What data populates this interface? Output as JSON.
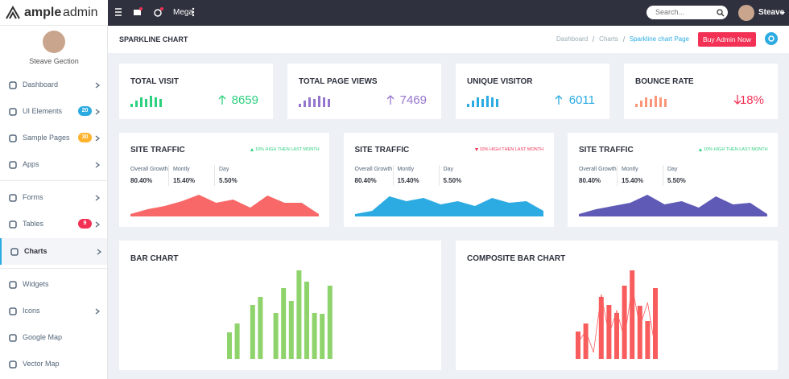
{
  "brand": {
    "bold": "ample",
    "light": "admin"
  },
  "topbar": {
    "mega": "Mega",
    "search_placeholder": "Search...",
    "user": "Steave"
  },
  "sidebar": {
    "user": "Steave Gection",
    "menu": [
      {
        "label": "Dashboard"
      },
      {
        "label": "UI Elements",
        "badge": "20",
        "badge_color": "#2cabe3"
      },
      {
        "label": "Sample Pages",
        "badge": "30",
        "badge_color": "#ffb22b"
      },
      {
        "label": "Apps"
      },
      {
        "label": "Forms"
      },
      {
        "label": "Tables",
        "badge": "9",
        "badge_color": "#f33155"
      },
      {
        "label": "Charts",
        "active": true
      },
      {
        "label": "Widgets"
      },
      {
        "label": "Icons"
      },
      {
        "label": "Google Map"
      },
      {
        "label": "Vector Map"
      }
    ]
  },
  "page": {
    "title": "SPARKLINE CHART",
    "breadcrumb": [
      "Dashboard",
      "Charts",
      "Sparkline chart Page"
    ],
    "button": "Buy Admin Now"
  },
  "stats": [
    {
      "title": "TOTAL VISIT",
      "value": "8659",
      "trend": "up",
      "color": "#2cd07e",
      "bars": [
        4,
        8,
        12,
        10,
        14,
        12,
        10
      ]
    },
    {
      "title": "TOTAL PAGE VIEWS",
      "value": "7469",
      "trend": "up",
      "color": "#9675ce",
      "bars": [
        4,
        8,
        12,
        10,
        14,
        12,
        10
      ]
    },
    {
      "title": "UNIQUE VISITOR",
      "value": "6011",
      "trend": "up",
      "color": "#2cabe3",
      "bars": [
        4,
        8,
        12,
        10,
        14,
        12,
        10
      ]
    },
    {
      "title": "BOUNCE RATE",
      "value": "18%",
      "trend": "down",
      "color": "#f33155",
      "bar_color": "#fb9678",
      "bars": [
        4,
        8,
        12,
        10,
        14,
        12,
        10
      ]
    }
  ],
  "traffic": [
    {
      "title": "SITE TRAFFIC",
      "note": "10% HIGH THEN LAST MONTH",
      "trend": "up",
      "color": "#f96868",
      "labels": [
        "Overall Growth",
        "Montly",
        "Day"
      ],
      "numbers": [
        "80.40%",
        "15.40%",
        "5.50%"
      ],
      "area": [
        2,
        8,
        12,
        18,
        26,
        16,
        20,
        10,
        25,
        16,
        16,
        2
      ]
    },
    {
      "title": "SITE TRAFFIC",
      "note": "10% HIGH THEN LAST MONTH",
      "trend": "down",
      "color": "#2cabe3",
      "labels": [
        "Overall Growth",
        "Montly",
        "Day"
      ],
      "numbers": [
        "80.40%",
        "15.40%",
        "5.50%"
      ],
      "area": [
        2,
        6,
        24,
        18,
        22,
        14,
        18,
        12,
        22,
        16,
        18,
        6
      ]
    },
    {
      "title": "SITE TRAFFIC",
      "note": "10% HIGH THEN LAST MONTH",
      "trend": "up",
      "color": "#5f5ab6",
      "labels": [
        "Overall Growth",
        "Montly",
        "Day"
      ],
      "numbers": [
        "80.40%",
        "15.40%",
        "5.50%"
      ],
      "area": [
        2,
        8,
        12,
        16,
        26,
        14,
        18,
        10,
        24,
        14,
        16,
        2
      ]
    }
  ],
  "bar_chart": {
    "title": "BAR CHART",
    "color": "#8ed36b",
    "values": [
      33,
      44,
      0,
      67,
      77,
      0,
      57,
      88,
      72,
      110,
      96,
      57,
      56,
      91
    ]
  },
  "composite": {
    "title": "COMPOSITE BAR CHART",
    "color": "#f95c5c",
    "values": [
      34,
      44,
      0,
      77,
      67,
      57,
      91,
      110,
      66,
      47,
      88
    ],
    "line": [
      20,
      35,
      8,
      80,
      30,
      60,
      25,
      90,
      40,
      70,
      12
    ]
  }
}
